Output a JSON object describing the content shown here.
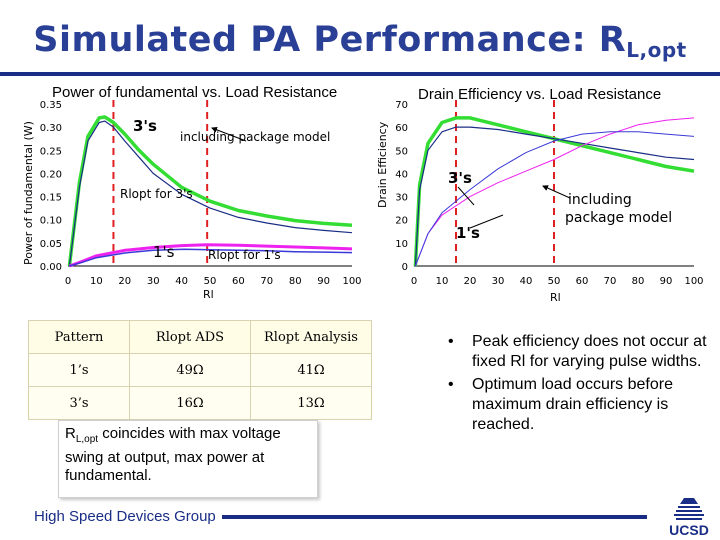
{
  "slide": {
    "title_main": "Simulated PA Performance: R",
    "title_sub": "L,opt",
    "footer": "High Speed Devices Group",
    "logo_text": "UCSD"
  },
  "chart_data": [
    {
      "type": "line",
      "title": "Power of fundamental vs. Load Resistance",
      "ylabel": "Power of fundamental (W)",
      "xlabel": "Rl",
      "xlim": [
        0,
        100
      ],
      "ylim": [
        0,
        0.35
      ],
      "xticks": [
        "0",
        "10",
        "20",
        "30",
        "40",
        "50",
        "60",
        "70",
        "80",
        "90",
        "100"
      ],
      "yticks": [
        "0.00",
        "0.05",
        "0.10",
        "0.15",
        "0.20",
        "0.25",
        "0.30",
        "0.35"
      ],
      "series": [
        {
          "name": "3's",
          "color": "#33dd33",
          "width": 3.5,
          "points": [
            [
              0.5,
              0
            ],
            [
              4,
              0.18
            ],
            [
              7,
              0.28
            ],
            [
              11,
              0.32
            ],
            [
              13,
              0.322
            ],
            [
              16,
              0.31
            ],
            [
              20,
              0.285
            ],
            [
              25,
              0.25
            ],
            [
              30,
              0.22
            ],
            [
              40,
              0.17
            ],
            [
              50,
              0.14
            ],
            [
              60,
              0.12
            ],
            [
              70,
              0.108
            ],
            [
              80,
              0.098
            ],
            [
              90,
              0.092
            ],
            [
              100,
              0.088
            ]
          ]
        },
        {
          "name": "3's including package model",
          "color": "#1a2d86",
          "width": 1.2,
          "points": [
            [
              0.5,
              0
            ],
            [
              4,
              0.17
            ],
            [
              7,
              0.27
            ],
            [
              11,
              0.31
            ],
            [
              13,
              0.313
            ],
            [
              16,
              0.3
            ],
            [
              20,
              0.27
            ],
            [
              25,
              0.235
            ],
            [
              30,
              0.2
            ],
            [
              40,
              0.155
            ],
            [
              50,
              0.125
            ],
            [
              60,
              0.105
            ],
            [
              70,
              0.093
            ],
            [
              80,
              0.083
            ],
            [
              90,
              0.077
            ],
            [
              100,
              0.072
            ]
          ]
        },
        {
          "name": "1's",
          "color": "#ee22ee",
          "width": 3,
          "points": [
            [
              0.5,
              0
            ],
            [
              5,
              0.01
            ],
            [
              10,
              0.022
            ],
            [
              20,
              0.034
            ],
            [
              30,
              0.04
            ],
            [
              40,
              0.044
            ],
            [
              49,
              0.046
            ],
            [
              60,
              0.045
            ],
            [
              70,
              0.043
            ],
            [
              80,
              0.041
            ],
            [
              90,
              0.039
            ],
            [
              100,
              0.037
            ]
          ]
        },
        {
          "name": "1's including package model",
          "color": "#3a3ad8",
          "width": 1.5,
          "points": [
            [
              0.5,
              0
            ],
            [
              5,
              0.008
            ],
            [
              10,
              0.018
            ],
            [
              20,
              0.028
            ],
            [
              30,
              0.034
            ],
            [
              41,
              0.036
            ],
            [
              50,
              0.035
            ],
            [
              60,
              0.034
            ],
            [
              70,
              0.033
            ],
            [
              80,
              0.031
            ],
            [
              90,
              0.03
            ],
            [
              100,
              0.029
            ]
          ]
        }
      ],
      "annotations": [
        "3's",
        "including package model",
        "Rlopt for 3's",
        "1's",
        "Rlopt for 1's"
      ],
      "markers": [
        {
          "label": "Rlopt for 3's",
          "x": 16
        },
        {
          "label": "Rlopt for 1's",
          "x": 49
        }
      ]
    },
    {
      "type": "line",
      "title": "Drain Efficiency vs. Load Resistance",
      "ylabel": "Drain Efficiency",
      "xlabel": "Rl",
      "xlim": [
        0,
        100
      ],
      "ylim": [
        0,
        70
      ],
      "xticks": [
        "0",
        "10",
        "20",
        "30",
        "40",
        "50",
        "60",
        "70",
        "80",
        "90",
        "100"
      ],
      "yticks": [
        "0",
        "10",
        "20",
        "30",
        "40",
        "50",
        "60",
        "70"
      ],
      "series": [
        {
          "name": "3's",
          "color": "#33dd33",
          "width": 3.5,
          "points": [
            [
              0.5,
              0
            ],
            [
              2,
              35
            ],
            [
              5,
              53
            ],
            [
              10,
              62
            ],
            [
              15,
              64
            ],
            [
              20,
              64
            ],
            [
              30,
              61
            ],
            [
              40,
              58
            ],
            [
              50,
              55
            ],
            [
              60,
              52
            ],
            [
              70,
              49
            ],
            [
              80,
              46
            ],
            [
              90,
              43
            ],
            [
              100,
              41
            ]
          ]
        },
        {
          "name": "3's including package model",
          "color": "#1a2d86",
          "width": 1.2,
          "points": [
            [
              0.5,
              0
            ],
            [
              2,
              33
            ],
            [
              5,
              50
            ],
            [
              10,
              58
            ],
            [
              15,
              60
            ],
            [
              20,
              60
            ],
            [
              30,
              59
            ],
            [
              40,
              57
            ],
            [
              50,
              55
            ],
            [
              60,
              53
            ],
            [
              70,
              51
            ],
            [
              80,
              49
            ],
            [
              90,
              47
            ],
            [
              100,
              46
            ]
          ]
        },
        {
          "name": "1's",
          "color": "#ee22ee",
          "width": 1,
          "points": [
            [
              0.5,
              0
            ],
            [
              5,
              14
            ],
            [
              10,
              22
            ],
            [
              20,
              30
            ],
            [
              30,
              36
            ],
            [
              40,
              41
            ],
            [
              50,
              46
            ],
            [
              60,
              52
            ],
            [
              70,
              57
            ],
            [
              80,
              61
            ],
            [
              90,
              63
            ],
            [
              100,
              64
            ]
          ]
        },
        {
          "name": "1's including package model",
          "color": "#3a3ad8",
          "width": 1,
          "points": [
            [
              0.5,
              0
            ],
            [
              5,
              14
            ],
            [
              10,
              23
            ],
            [
              20,
              33
            ],
            [
              30,
              42
            ],
            [
              40,
              49
            ],
            [
              50,
              54
            ],
            [
              60,
              57
            ],
            [
              70,
              58
            ],
            [
              80,
              58
            ],
            [
              90,
              57
            ],
            [
              100,
              56
            ]
          ]
        }
      ],
      "annotations": [
        "3's",
        "1's",
        "including",
        "package model"
      ],
      "markers": [
        {
          "x": 15
        },
        {
          "x": 50
        }
      ]
    }
  ],
  "table": {
    "headers": [
      "Pattern",
      "Rlopt ADS",
      "Rlopt Analysis"
    ],
    "rows": [
      [
        "1’s",
        "49Ω",
        "41Ω"
      ],
      [
        "3’s",
        "16Ω",
        "13Ω"
      ]
    ]
  },
  "note": {
    "r": "R",
    "sub": "L,opt",
    "text": " coincides with max voltage swing at output, max power at fundamental."
  },
  "bullets": [
    "Peak efficiency does not occur at fixed Rl for varying pulse widths.",
    "Optimum load occurs before maximum drain efficiency is reached."
  ]
}
